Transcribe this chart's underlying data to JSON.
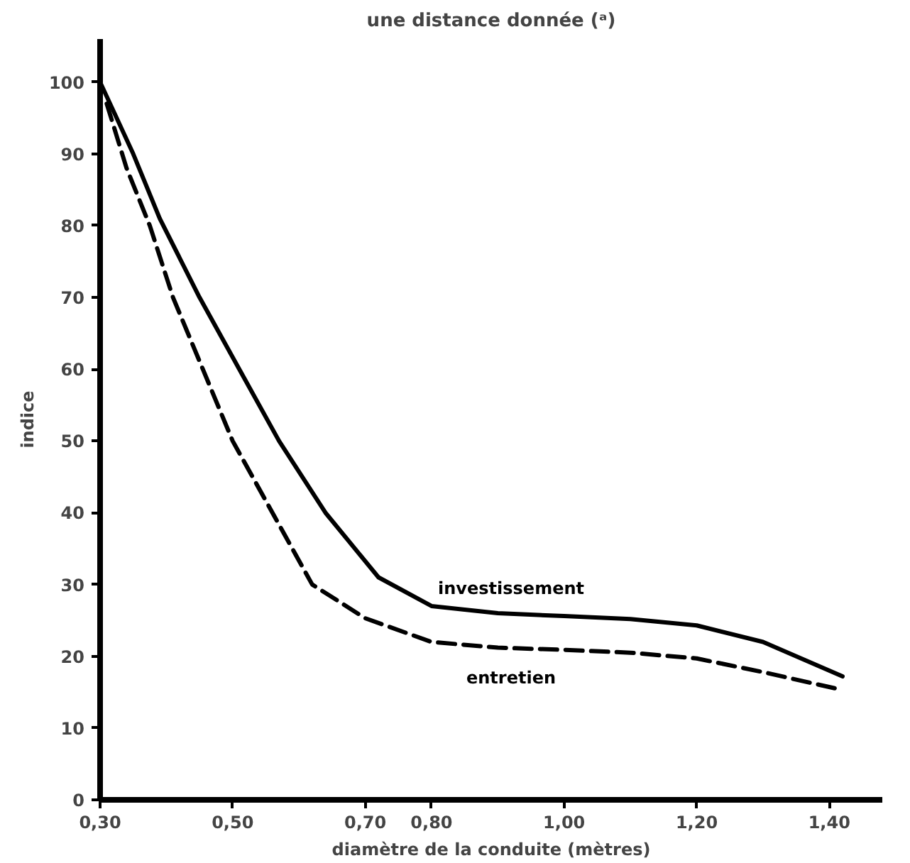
{
  "chart_data": {
    "type": "line",
    "title": "une distance donnée (ᵃ)",
    "xlabel": "diamètre de la conduite (mètres)",
    "ylabel": "indice",
    "xlim": [
      0.3,
      1.48
    ],
    "ylim": [
      0,
      106
    ],
    "xticks": [
      {
        "value": 0.3,
        "label": "0,30"
      },
      {
        "value": 0.5,
        "label": "0,50"
      },
      {
        "value": 0.7,
        "label": "0,70"
      },
      {
        "value": 0.8,
        "label": "0,80"
      },
      {
        "value": 1.0,
        "label": "1,00"
      },
      {
        "value": 1.2,
        "label": "1,20"
      },
      {
        "value": 1.4,
        "label": "1,40"
      }
    ],
    "yticks": [
      0,
      10,
      20,
      30,
      40,
      50,
      60,
      70,
      80,
      90,
      100
    ],
    "grid": false,
    "legend": false,
    "series": [
      {
        "name": "investissement",
        "color": "#000000",
        "line_style": "solid",
        "x": [
          0.3,
          0.35,
          0.39,
          0.45,
          0.51,
          0.57,
          0.64,
          0.72,
          0.8,
          0.9,
          1.0,
          1.1,
          1.2,
          1.3,
          1.42
        ],
        "values": [
          100,
          90,
          81,
          70,
          60,
          50,
          40,
          31,
          27,
          26,
          25.6,
          25.2,
          24.3,
          22,
          17.2
        ]
      },
      {
        "name": "entretien",
        "color": "#000000",
        "line_style": "dashed",
        "x": [
          0.31,
          0.34,
          0.375,
          0.41,
          0.455,
          0.5,
          0.56,
          0.62,
          0.7,
          0.8,
          0.9,
          1.0,
          1.1,
          1.2,
          1.3,
          1.415
        ],
        "values": [
          97,
          88,
          80,
          70,
          60,
          50,
          40,
          30,
          25.3,
          22,
          21.2,
          20.9,
          20.5,
          19.7,
          17.8,
          15.4
        ]
      }
    ]
  }
}
